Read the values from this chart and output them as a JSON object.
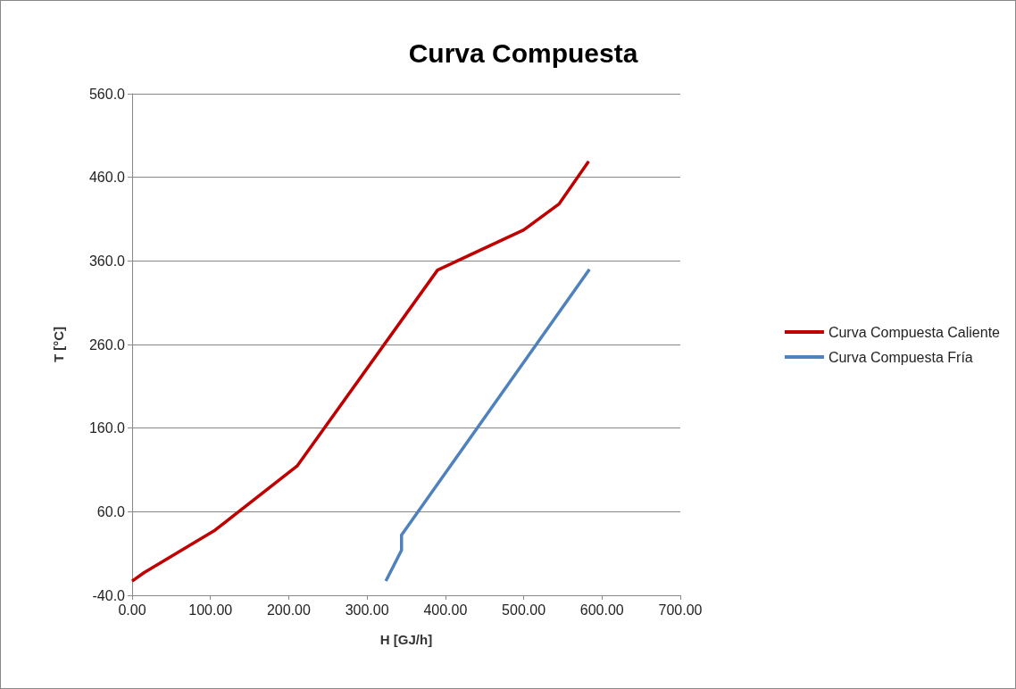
{
  "chart_data": {
    "type": "line",
    "title": "Curva Compuesta",
    "xlabel": "H [GJ/h]",
    "ylabel": "T [°C]",
    "series": [
      {
        "name": "Curva Compuesta Caliente",
        "color": "#c00000",
        "x": [
          0,
          15,
          106,
          211,
          390,
          500,
          545,
          583
        ],
        "values": [
          -23,
          -13,
          38,
          115,
          349,
          397,
          428,
          479
        ]
      },
      {
        "name": "Curva Compuesta Fría",
        "color": "#4f81bd",
        "x": [
          324,
          344,
          344,
          584
        ],
        "values": [
          -23,
          14,
          32,
          350
        ]
      }
    ],
    "xlim": [
      0,
      700
    ],
    "xticks": [
      {
        "value": 0,
        "label": "0.00"
      },
      {
        "value": 100,
        "label": "100.00"
      },
      {
        "value": 200,
        "label": "200.00"
      },
      {
        "value": 300,
        "label": "300.00"
      },
      {
        "value": 400,
        "label": "400.00"
      },
      {
        "value": 500,
        "label": "500.00"
      },
      {
        "value": 600,
        "label": "600.00"
      },
      {
        "value": 700,
        "label": "700.00"
      }
    ],
    "ylim": [
      -40,
      560
    ],
    "yticks": [
      {
        "value": -40,
        "label": "-40.0"
      },
      {
        "value": 60,
        "label": "60.0"
      },
      {
        "value": 160,
        "label": "160.0"
      },
      {
        "value": 260,
        "label": "260.0"
      },
      {
        "value": 360,
        "label": "360.0"
      },
      {
        "value": 460,
        "label": "460.0"
      },
      {
        "value": 560,
        "label": "560.0"
      }
    ],
    "grid": "y",
    "legend": "right",
    "marker": "none",
    "line_style": "solid"
  }
}
